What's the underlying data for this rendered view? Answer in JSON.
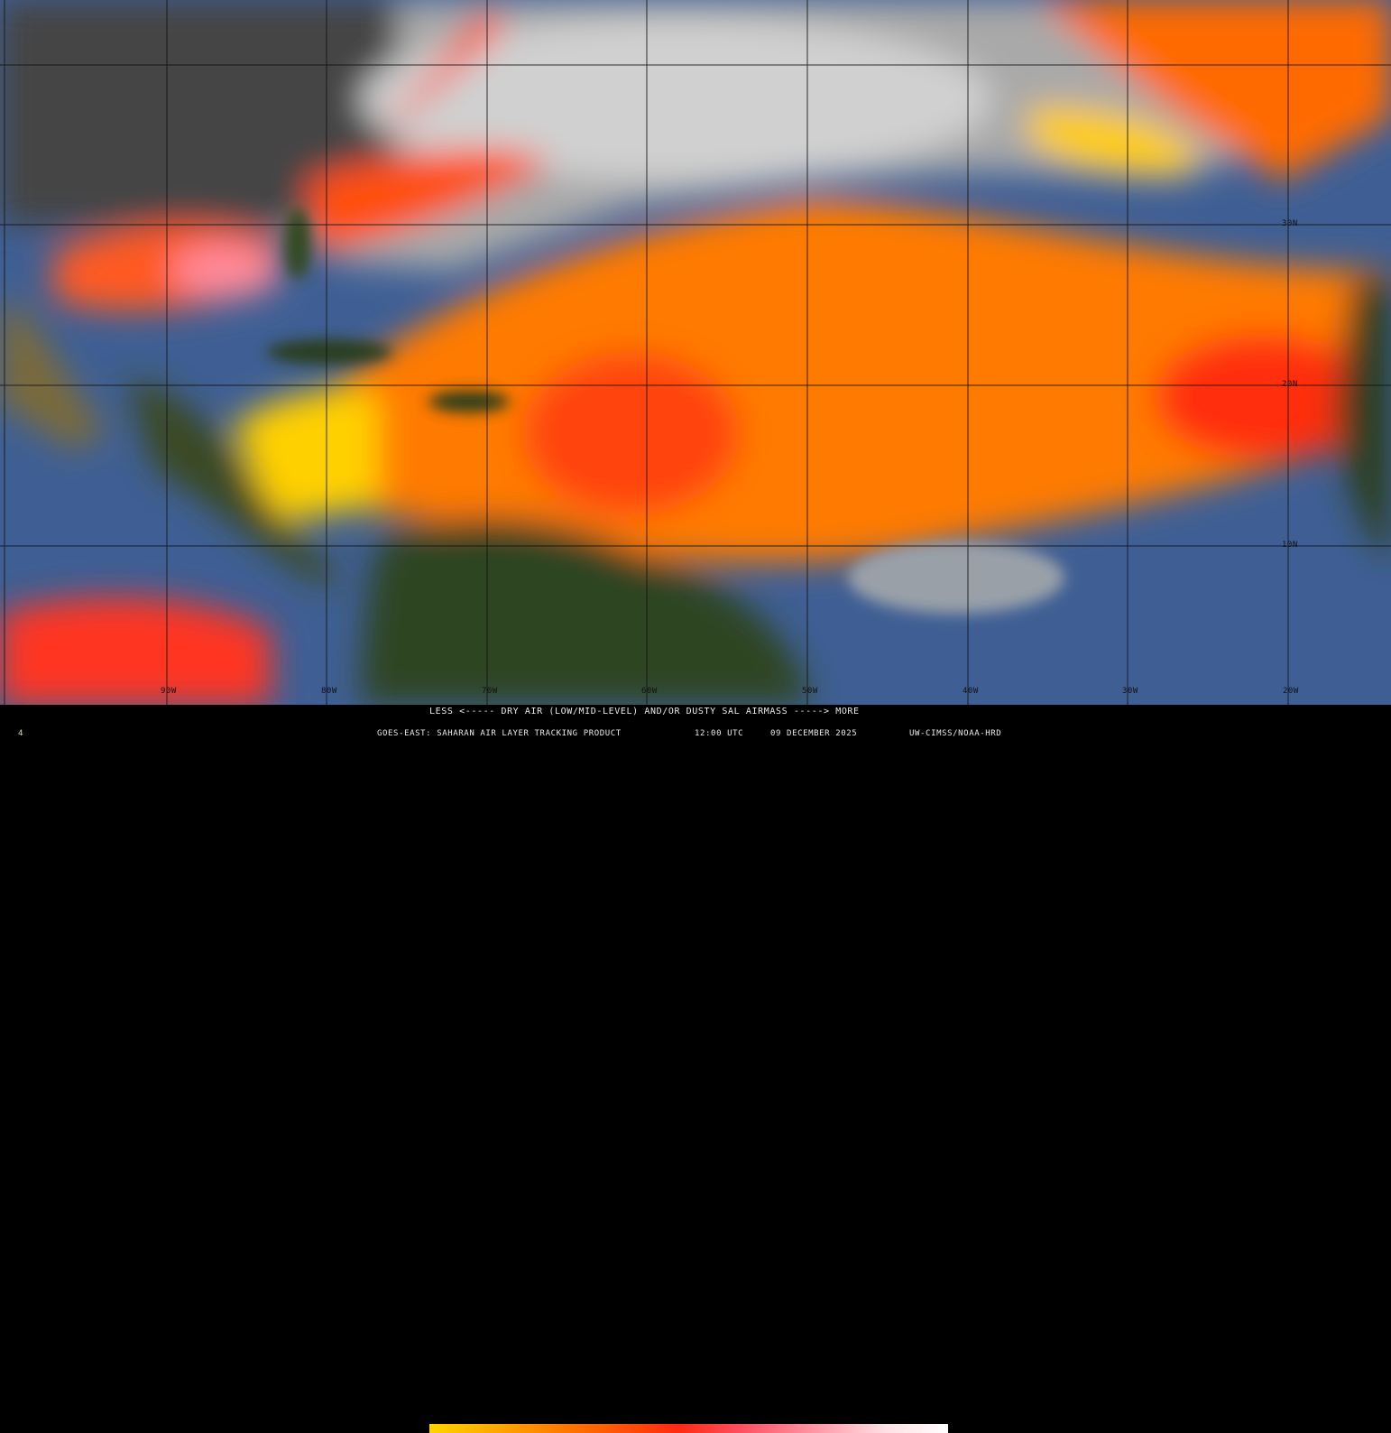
{
  "map": {
    "longitude_labels": [
      "90W",
      "80W",
      "70W",
      "60W",
      "50W",
      "40W",
      "30W",
      "20W"
    ],
    "latitude_labels": [
      "30N",
      "20N",
      "10N"
    ],
    "colors": {
      "ocean": "#3f5f94",
      "cloud": "#b8b8b8",
      "land": "#2f3f1f",
      "dry_air_low": "#ffd400",
      "dry_air_mid": "#ff6a00",
      "dry_air_high": "#ff2a10"
    }
  },
  "legend": {
    "scale_text": "LESS <----- DRY AIR (LOW/MID-LEVEL) AND/OR DUSTY SAL AIRMASS -----> MORE",
    "colorbar_stops": [
      "#ffd400",
      "#ffa000",
      "#ff6a00",
      "#ff2a10",
      "#ff4f60",
      "#ff9aa8",
      "#ffe0e4",
      "#ffffff"
    ]
  },
  "footer": {
    "product": "GOES-EAST: SAHARAN AIR LAYER TRACKING PRODUCT",
    "time": "12:00 UTC",
    "date": "09 DECEMBER 2025",
    "credit": "UW-CIMSS/NOAA-HRD",
    "frame": "4"
  }
}
